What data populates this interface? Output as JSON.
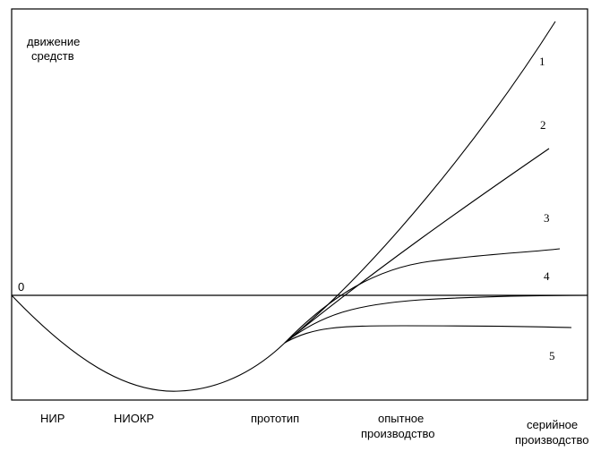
{
  "y_axis_label": [
    "движение",
    "средств"
  ],
  "zero_label": "0",
  "stages": [
    "НИР",
    "НИОКР",
    "прототип",
    [
      "опытное",
      "производство"
    ],
    [
      "серийное",
      "производство"
    ]
  ],
  "curve_labels": [
    "1",
    "2",
    "3",
    "4",
    "5"
  ]
}
